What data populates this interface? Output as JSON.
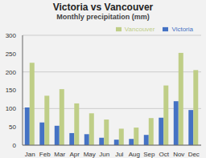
{
  "chart_data": {
    "type": "bar",
    "title": "Victoria vs Vancouver",
    "subtitle": "Monthly precipitation (mm)",
    "categories": [
      "Jan",
      "Feb",
      "Mar",
      "Apr",
      "May",
      "Jun",
      "Jul",
      "Aug",
      "Sep",
      "Oct",
      "Nov",
      "Dec"
    ],
    "series": [
      {
        "name": "Victoria",
        "color": "#4472C4",
        "values": [
          103,
          62,
          53,
          33,
          30,
          20,
          15,
          17,
          28,
          75,
          120,
          96
        ]
      },
      {
        "name": "Vancouver",
        "color": "#BFCE87",
        "values": [
          225,
          135,
          153,
          114,
          87,
          70,
          45,
          48,
          74,
          163,
          252,
          205
        ]
      }
    ],
    "ylim": [
      0,
      300
    ],
    "yticks": [
      0,
      50,
      100,
      150,
      200,
      250,
      300
    ],
    "grid": true,
    "legend": "upper right"
  }
}
